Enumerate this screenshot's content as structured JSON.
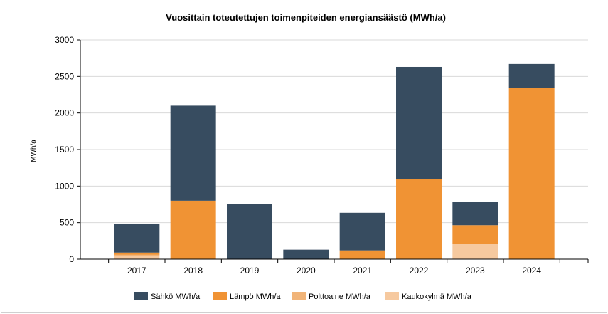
{
  "chart_data": {
    "type": "bar",
    "stacked": true,
    "title": "Vuosittain  toteutettujen  toimenpiteiden  energiansäästö  (MWh/a)",
    "ylabel": "MWh/a",
    "xlabel": "",
    "ylim": [
      0,
      3000
    ],
    "yticks": [
      "0",
      "500",
      "1000",
      "1500",
      "2000",
      "2500",
      "3000"
    ],
    "grid": true,
    "legend_position": "bottom",
    "categories": [
      "2017",
      "2018",
      "2019",
      "2020",
      "2021",
      "2022",
      "2023",
      "2024"
    ],
    "series": [
      {
        "name": "Kaukokylmä MWh/a",
        "color": "#f6c99f",
        "values": [
          40,
          0,
          0,
          0,
          0,
          0,
          205,
          0
        ]
      },
      {
        "name": "Polttoaine MWh/a",
        "color": "#f1b478",
        "values": [
          20,
          0,
          0,
          0,
          0,
          0,
          0,
          0
        ]
      },
      {
        "name": "Lämpö MWh/a",
        "color": "#f09334",
        "values": [
          30,
          800,
          0,
          0,
          120,
          1100,
          260,
          2340
        ]
      },
      {
        "name": "Sähkö MWh/a",
        "color": "#374c60",
        "values": [
          395,
          1300,
          750,
          130,
          515,
          1530,
          320,
          330
        ]
      }
    ],
    "legend_order": [
      "Sähkö MWh/a",
      "Lämpö MWh/a",
      "Polttoaine MWh/a",
      "Kaukokylmä MWh/a"
    ]
  }
}
